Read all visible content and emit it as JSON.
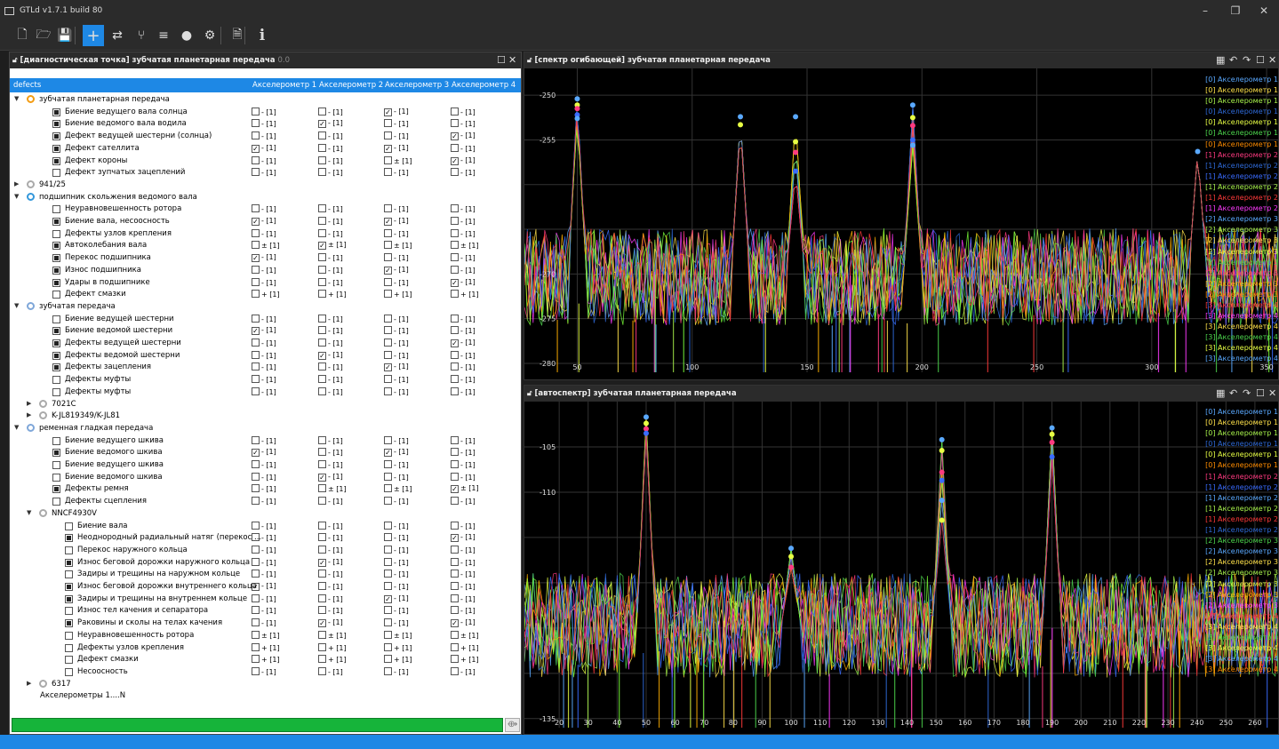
{
  "app": {
    "title": "GTLd v1.7.1 build 80",
    "window_controls": [
      "–",
      "❐",
      "✕"
    ]
  },
  "toolbar": {
    "buttons": [
      {
        "name": "new-file-icon",
        "glyph": "🗋"
      },
      {
        "name": "open-folder-icon",
        "glyph": "🗁"
      },
      {
        "name": "save-icon",
        "glyph": "💾"
      },
      {
        "name": "add-icon",
        "glyph": "+"
      },
      {
        "name": "routing-icon",
        "glyph": "⇄"
      },
      {
        "name": "branch-icon",
        "glyph": "⑂"
      },
      {
        "name": "filter-icon",
        "glyph": "≡"
      },
      {
        "name": "record-icon",
        "glyph": "●"
      },
      {
        "name": "gear-icon",
        "glyph": "⚙"
      },
      {
        "name": "log-icon",
        "glyph": "🗎"
      },
      {
        "name": "info-icon",
        "glyph": "i"
      }
    ]
  },
  "left_panel": {
    "header": "[диагностическая точка] зубчатая планетарная передача",
    "header_sub": "0.0",
    "columns": [
      "defects",
      "Акселерометр 1",
      "Акселерометр 2",
      "Акселерометр 3",
      "Акселерометр 4"
    ],
    "rows": [
      {
        "lvl": 0,
        "exp": "▼",
        "icon": "gear",
        "color": "#f39c12",
        "label": "зубчатая планетарная передача"
      },
      {
        "lvl": 1,
        "cb": "f",
        "label": "Биение ведущего вала солнца",
        "c": [
          "□",
          "-",
          "□",
          "-",
          "☑",
          "-",
          "□",
          "-"
        ]
      },
      {
        "lvl": 1,
        "cb": "f",
        "label": "Биение ведомого вала водила",
        "c": [
          "□",
          "-",
          "☑",
          "-",
          "□",
          "-",
          "□",
          "-"
        ]
      },
      {
        "lvl": 1,
        "cb": "f",
        "label": "Дефект ведущей шестерни (солнца)",
        "c": [
          "□",
          "-",
          "□",
          "-",
          "□",
          "-",
          "☑",
          "-"
        ]
      },
      {
        "lvl": 1,
        "cb": "f",
        "label": "Дефект сателлита",
        "c": [
          "☑",
          "-",
          "□",
          "-",
          "☑",
          "-",
          "□",
          "-"
        ]
      },
      {
        "lvl": 1,
        "cb": "f",
        "label": "Дефект короны",
        "c": [
          "□",
          "-",
          "□",
          "-",
          "□",
          "±",
          "☑",
          "-"
        ]
      },
      {
        "lvl": 1,
        "cb": "e",
        "label": "Дефект зупчатых зацеплений",
        "c": [
          "□",
          "-",
          "□",
          "-",
          "□",
          "-",
          "□",
          "-"
        ]
      },
      {
        "lvl": 0,
        "exp": "▶",
        "icon": "bearing",
        "color": "#aaa",
        "label": "941/25"
      },
      {
        "lvl": 0,
        "exp": "▼",
        "icon": "ring",
        "color": "#3498db",
        "label": "подшипник скольжения ведомого вала"
      },
      {
        "lvl": 1,
        "cb": "e",
        "label": "Неуравновешенность ротора",
        "c": [
          "□",
          "-",
          "□",
          "-",
          "□",
          "-",
          "□",
          "-"
        ]
      },
      {
        "lvl": 1,
        "cb": "f",
        "label": "Биение вала, несоосность",
        "c": [
          "☑",
          "-",
          "□",
          "-",
          "☑",
          "-",
          "□",
          "-"
        ]
      },
      {
        "lvl": 1,
        "cb": "e",
        "label": "Дефекты узлов крепления",
        "c": [
          "□",
          "-",
          "□",
          "-",
          "□",
          "-",
          "□",
          "-"
        ]
      },
      {
        "lvl": 1,
        "cb": "f",
        "label": "Автоколебания вала",
        "c": [
          "□",
          "±",
          "☑",
          "±",
          "□",
          "±",
          "□",
          "±"
        ]
      },
      {
        "lvl": 1,
        "cb": "f",
        "label": "Перекос подшипника",
        "c": [
          "☑",
          "-",
          "□",
          "-",
          "□",
          "-",
          "□",
          "-"
        ]
      },
      {
        "lvl": 1,
        "cb": "f",
        "label": "Износ подшипника",
        "c": [
          "□",
          "-",
          "□",
          "-",
          "☑",
          "-",
          "□",
          "-"
        ]
      },
      {
        "lvl": 1,
        "cb": "f",
        "label": "Удары в подшипнике",
        "c": [
          "□",
          "-",
          "□",
          "-",
          "□",
          "-",
          "☑",
          "-"
        ]
      },
      {
        "lvl": 1,
        "cb": "e",
        "label": "Дефект смазки",
        "c": [
          "□",
          "+",
          "□",
          "+",
          "□",
          "+",
          "□",
          "+"
        ]
      },
      {
        "lvl": 0,
        "exp": "▼",
        "icon": "gears",
        "color": "#7fa7d9",
        "label": "зубчатая передача"
      },
      {
        "lvl": 1,
        "cb": "e",
        "label": "Биение ведущей шестерни",
        "c": [
          "□",
          "-",
          "□",
          "-",
          "□",
          "-",
          "□",
          "-"
        ]
      },
      {
        "lvl": 1,
        "cb": "f",
        "label": "Биение ведомой шестерни",
        "c": [
          "☑",
          "-",
          "□",
          "-",
          "□",
          "-",
          "□",
          "-"
        ]
      },
      {
        "lvl": 1,
        "cb": "f",
        "label": "Дефекты ведущей шестерни",
        "c": [
          "□",
          "-",
          "□",
          "-",
          "□",
          "-",
          "☑",
          "-"
        ]
      },
      {
        "lvl": 1,
        "cb": "f",
        "label": "Дефекты ведомой шестерни",
        "c": [
          "□",
          "-",
          "☑",
          "-",
          "□",
          "-",
          "□",
          "-"
        ]
      },
      {
        "lvl": 1,
        "cb": "f",
        "label": "Дефекты зацепления",
        "c": [
          "□",
          "-",
          "□",
          "-",
          "☑",
          "-",
          "□",
          "-"
        ]
      },
      {
        "lvl": 1,
        "cb": "e",
        "label": "Дефекты муфты",
        "c": [
          "□",
          "-",
          "□",
          "-",
          "□",
          "-",
          "□",
          "-"
        ]
      },
      {
        "lvl": 1,
        "cb": "e",
        "label": "Дефекты муфты",
        "c": [
          "□",
          "-",
          "□",
          "-",
          "□",
          "-",
          "□",
          "-"
        ]
      },
      {
        "lvl": 1,
        "exp": "▶",
        "icon": "bearing",
        "color": "#aaa",
        "label": "7021C",
        "sub": true
      },
      {
        "lvl": 1,
        "exp": "▶",
        "icon": "bearing",
        "color": "#aaa",
        "label": "K-JL819349/K-JL81",
        "sub": true
      },
      {
        "lvl": 0,
        "exp": "▼",
        "icon": "belt",
        "color": "#7fa7d9",
        "label": "ременная гладкая передача"
      },
      {
        "lvl": 1,
        "cb": "e",
        "label": "Биение ведущего шкива",
        "c": [
          "□",
          "-",
          "□",
          "-",
          "□",
          "-",
          "□",
          "-"
        ]
      },
      {
        "lvl": 1,
        "cb": "f",
        "label": "Биение ведомого шкива",
        "c": [
          "☑",
          "-",
          "□",
          "-",
          "☑",
          "-",
          "□",
          "-"
        ]
      },
      {
        "lvl": 1,
        "cb": "e",
        "label": "Биение ведущего шкива",
        "c": [
          "□",
          "-",
          "□",
          "-",
          "□",
          "-",
          "□",
          "-"
        ]
      },
      {
        "lvl": 1,
        "cb": "e",
        "label": "Биение ведомого шкива",
        "c": [
          "□",
          "-",
          "☑",
          "-",
          "□",
          "-",
          "□",
          "-"
        ]
      },
      {
        "lvl": 1,
        "cb": "f",
        "label": "Дефекты ремня",
        "c": [
          "□",
          "-",
          "□",
          "±",
          "□",
          "±",
          "☑",
          "±"
        ]
      },
      {
        "lvl": 1,
        "cb": "e",
        "label": "Дефекты сцепления",
        "c": [
          "□",
          "-",
          "□",
          "-",
          "□",
          "-",
          "□",
          "-"
        ]
      },
      {
        "lvl": 1,
        "exp": "▼",
        "icon": "bearing",
        "color": "#aaa",
        "label": "NNCF4930V",
        "sub": true
      },
      {
        "lvl": 2,
        "cb": "e",
        "label": "Биение вала",
        "c": [
          "□",
          "-",
          "□",
          "-",
          "□",
          "-",
          "□",
          "-"
        ]
      },
      {
        "lvl": 2,
        "cb": "f",
        "label": "Неоднородный радиальный натяг (перекос ...",
        "c": [
          "□",
          "-",
          "□",
          "-",
          "□",
          "-",
          "☑",
          "-"
        ]
      },
      {
        "lvl": 2,
        "cb": "e",
        "label": "Перекос наружного кольца",
        "c": [
          "□",
          "-",
          "□",
          "-",
          "□",
          "-",
          "□",
          "-"
        ]
      },
      {
        "lvl": 2,
        "cb": "f",
        "label": "Износ беговой дорожки наружного кольца",
        "c": [
          "□",
          "-",
          "☑",
          "-",
          "□",
          "-",
          "□",
          "-"
        ]
      },
      {
        "lvl": 2,
        "cb": "e",
        "label": "Задиры и трещины на наружном кольце",
        "c": [
          "□",
          "-",
          "□",
          "-",
          "□",
          "-",
          "□",
          "-"
        ]
      },
      {
        "lvl": 2,
        "cb": "f",
        "label": "Износ беговой дорожки внутреннего кольца",
        "c": [
          "☑",
          "-",
          "□",
          "-",
          "□",
          "-",
          "□",
          "-"
        ]
      },
      {
        "lvl": 2,
        "cb": "f",
        "label": "Задиры и трещины на внутреннем кольце",
        "c": [
          "□",
          "-",
          "□",
          "-",
          "☑",
          "-",
          "□",
          "-"
        ]
      },
      {
        "lvl": 2,
        "cb": "e",
        "label": "Износ тел качения и сепаратора",
        "c": [
          "□",
          "-",
          "□",
          "-",
          "□",
          "-",
          "□",
          "-"
        ]
      },
      {
        "lvl": 2,
        "cb": "f",
        "label": "Раковины и сколы на телах качения",
        "c": [
          "□",
          "-",
          "☑",
          "-",
          "□",
          "-",
          "☑",
          "-"
        ]
      },
      {
        "lvl": 2,
        "cb": "e",
        "label": "Неуравновешенность ротора",
        "c": [
          "□",
          "±",
          "□",
          "±",
          "□",
          "±",
          "□",
          "±"
        ]
      },
      {
        "lvl": 2,
        "cb": "e",
        "label": "Дефекты узлов крепления",
        "c": [
          "□",
          "+",
          "□",
          "+",
          "□",
          "+",
          "□",
          "+"
        ]
      },
      {
        "lvl": 2,
        "cb": "e",
        "label": "Дефект смазки",
        "c": [
          "□",
          "+",
          "□",
          "+",
          "□",
          "+",
          "□",
          "+"
        ]
      },
      {
        "lvl": 2,
        "cb": "e",
        "label": "Несоосность",
        "c": [
          "□",
          "-",
          "□",
          "-",
          "□",
          "-",
          "□",
          "-"
        ]
      },
      {
        "lvl": 1,
        "exp": "▶",
        "icon": "bearing",
        "color": "#aaa",
        "label": "6317",
        "sub": true
      },
      {
        "lvl": 0,
        "label": "Акселерометры 1....N",
        "plain": true
      }
    ],
    "cell_suffix": "[1]"
  },
  "chart_top": {
    "header": "[спектр огибающей] зубчатая планетарная передача",
    "chart_data": {
      "type": "line",
      "xlim": [
        27,
        355
      ],
      "ylim": [
        -281,
        -247
      ],
      "xticks": [
        50,
        100,
        150,
        200,
        250,
        300,
        350
      ],
      "yticks": [
        -250,
        -255,
        -260,
        -265,
        -270,
        -275,
        -280
      ],
      "ytick_labels": [
        "-250",
        "-255",
        "",
        "",
        "-270",
        "-275",
        "-280"
      ],
      "peaks": [
        {
          "x": 50,
          "values": [
            -250.4,
            -251.1,
            -251.5,
            -252.2,
            -252.6
          ]
        },
        {
          "x": 121,
          "values": [
            -252.4,
            -253.3
          ]
        },
        {
          "x": 145,
          "values": [
            -252.4,
            -255.2,
            -256.4,
            -258.5
          ]
        },
        {
          "x": 196,
          "values": [
            -251.1,
            -252.5,
            -253.4,
            -255.0,
            -255.6
          ]
        },
        {
          "x": 320,
          "values": [
            -256.3
          ]
        }
      ]
    },
    "legend": [
      {
        "t": "[0] Акселерометр 1",
        "c": "#5aa9ff"
      },
      {
        "t": "[0] Акселерометр 1",
        "c": "#ffe24a"
      },
      {
        "t": "[0] Акселерометр 1",
        "c": "#a6f04a"
      },
      {
        "t": "[0] Акселерометр 1",
        "c": "#2f6ad8"
      },
      {
        "t": "[0] Акселерометр 1",
        "c": "#e8ff44"
      },
      {
        "t": "[0] Акселерометр 1",
        "c": "#4dd64d"
      },
      {
        "t": "[0] Акселерометр 1",
        "c": "#ff8c00"
      },
      {
        "t": "[1] Акселерометр 2",
        "c": "#ff3a80"
      },
      {
        "t": "[1] Акселерометр 2",
        "c": "#2f6ad8"
      },
      {
        "t": "[1] Акселерометр 2",
        "c": "#3a6cff"
      },
      {
        "t": "[1] Акселерометр 2",
        "c": "#a6f04a"
      },
      {
        "t": "[1] Акселерометр 2",
        "c": "#ff3a3a"
      },
      {
        "t": "[1] Акселерометр 2",
        "c": "#ff3aff"
      },
      {
        "t": "[2] Акселерометр 3",
        "c": "#5aa9ff"
      },
      {
        "t": "[2] Акселерометр 3",
        "c": "#a6f04a"
      },
      {
        "t": "[2] Акселерометр 3",
        "c": "#ffe24a"
      },
      {
        "t": "[2] Акселерометр 3",
        "c": "#e8ff44"
      },
      {
        "t": "[2] Акселерометр 3",
        "c": "#4dd64d"
      },
      {
        "t": "[2] Акселерометр 3",
        "c": "#ff3a80"
      },
      {
        "t": "[2] Акселерометр 3",
        "c": "#ffb000"
      },
      {
        "t": "[2] Акселерометр 3",
        "c": "#ff8c00"
      },
      {
        "t": "[3] Акселерометр 4",
        "c": "#ff3a3a"
      },
      {
        "t": "[3] Акселерометр 4",
        "c": "#ff3aff"
      },
      {
        "t": "[3] Акселерометр 4",
        "c": "#ffe24a"
      },
      {
        "t": "[3] Акселерометр 4",
        "c": "#4dd64d"
      },
      {
        "t": "[3] Акселерометр 4",
        "c": "#e8ff44"
      },
      {
        "t": "[3] Акселерометр 4",
        "c": "#5aa9ff"
      }
    ]
  },
  "chart_bottom": {
    "header": "[автоспектр] зубчатая планетарная передача",
    "chart_data": {
      "type": "line",
      "xlim": [
        8,
        268
      ],
      "ylim": [
        -136,
        -100
      ],
      "xticks": [
        20,
        30,
        40,
        50,
        60,
        70,
        80,
        90,
        100,
        110,
        120,
        130,
        140,
        150,
        160,
        170,
        180,
        190,
        200,
        210,
        220,
        230,
        240,
        250,
        260
      ],
      "yticks": [
        -105,
        -110,
        -115,
        -120,
        -125,
        -130,
        -135
      ],
      "ytick_labels": [
        "-105",
        "-110",
        "",
        "",
        "",
        "",
        "-135"
      ],
      "peaks": [
        {
          "x": 50,
          "values": [
            -101.7,
            -102.4,
            -103.0,
            -103.5
          ]
        },
        {
          "x": 100,
          "values": [
            -116.2,
            -117.1,
            -118.3
          ]
        },
        {
          "x": 152,
          "values": [
            -104.2,
            -105.4,
            -107.8,
            -108.7,
            -110.9,
            -113.1
          ]
        },
        {
          "x": 190,
          "values": [
            -102.9,
            -103.6,
            -104.5,
            -106.1
          ]
        }
      ]
    },
    "legend": [
      {
        "t": "[0] Акселерометр 1",
        "c": "#5aa9ff"
      },
      {
        "t": "[0] Акселерометр 1",
        "c": "#ffe24a"
      },
      {
        "t": "[0] Акселерометр 1",
        "c": "#a6f04a"
      },
      {
        "t": "[0] Акселерометр 1",
        "c": "#2f6ad8"
      },
      {
        "t": "[0] Акселерометр 1",
        "c": "#e8ff44"
      },
      {
        "t": "[0] Акселерометр 1",
        "c": "#ff8c00"
      },
      {
        "t": "[1] Акселерометр 2",
        "c": "#ff3a80"
      },
      {
        "t": "[1] Акселерометр 2",
        "c": "#3a6cff"
      },
      {
        "t": "[1] Акселерометр 2",
        "c": "#5aa9ff"
      },
      {
        "t": "[1] Акселерометр 2",
        "c": "#a6f04a"
      },
      {
        "t": "[1] Акселерометр 2",
        "c": "#ff3a3a"
      },
      {
        "t": "[1] Акселерометр 2",
        "c": "#2f6ad8"
      },
      {
        "t": "[2] Акселерометр 3",
        "c": "#4dd64d"
      },
      {
        "t": "[2] Акселерометр 3",
        "c": "#5aa9ff"
      },
      {
        "t": "[2] Акселерометр 3",
        "c": "#ffe24a"
      },
      {
        "t": "[2] Акселерометр 3",
        "c": "#a6f04a"
      },
      {
        "t": "[2] Акселерометр 3",
        "c": "#e8ff44"
      },
      {
        "t": "[2] Акселерометр 3",
        "c": "#ffb000"
      },
      {
        "t": "[2] Акселерометр 3",
        "c": "#ff3aff"
      },
      {
        "t": "[3] Акселерометр 4",
        "c": "#ff3a3a"
      },
      {
        "t": "[3] Акселерометр 4",
        "c": "#ffe24a"
      },
      {
        "t": "[3] Акселерометр 4",
        "c": "#4dd64d"
      },
      {
        "t": "[3] Акселерометр 4",
        "c": "#e8ff44"
      },
      {
        "t": "[3] Акселерометр 4",
        "c": "#5aa9ff"
      },
      {
        "t": "[3] Акселерометр 4",
        "c": "#ff8c00"
      }
    ]
  },
  "series_colors": [
    "#a6f04a",
    "#5aa9ff",
    "#ffe24a",
    "#ff3aff",
    "#e8ff44",
    "#2f6ad8",
    "#4dd64d",
    "#ff3a80",
    "#ffb000",
    "#7aff3a",
    "#3a6cff",
    "#ff3a3a"
  ]
}
